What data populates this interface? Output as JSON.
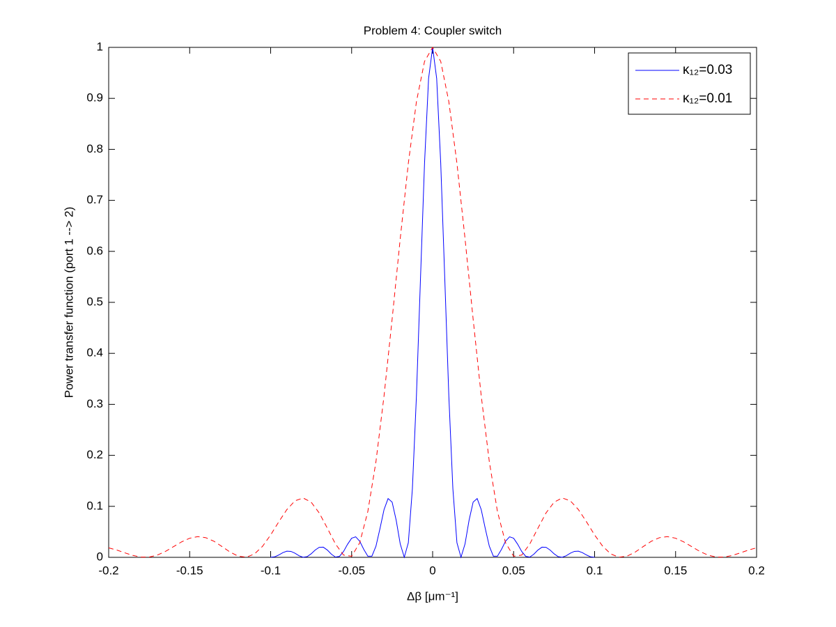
{
  "chart_data": {
    "type": "line",
    "title": "Problem 4: Coupler switch",
    "xlabel": "Δβ [μm⁻¹]",
    "ylabel": "Power transfer function (port 1 --> 2)",
    "xlim": [
      -0.2,
      0.2
    ],
    "ylim": [
      0,
      1
    ],
    "xticks": [
      -0.2,
      -0.15,
      -0.1,
      -0.05,
      0,
      0.05,
      0.1,
      0.15,
      0.2
    ],
    "yticks": [
      0,
      0.1,
      0.2,
      0.3,
      0.4,
      0.5,
      0.6,
      0.7,
      0.8,
      0.9,
      1
    ],
    "grid": false,
    "legend": "upper right",
    "series": [
      {
        "name": "κ₁₂=0.03",
        "color": "#0000ff",
        "linestyle": "solid",
        "x": [
          -0.1,
          -0.0975,
          -0.095,
          -0.0925,
          -0.09,
          -0.0875,
          -0.085,
          -0.0825,
          -0.08,
          -0.0775,
          -0.075,
          -0.0725,
          -0.07,
          -0.0675,
          -0.065,
          -0.0625,
          -0.06,
          -0.0575,
          -0.055,
          -0.0525,
          -0.05,
          -0.0475,
          -0.045,
          -0.0425,
          -0.04,
          -0.0375,
          -0.035,
          -0.0325,
          -0.03,
          -0.0275,
          -0.025,
          -0.0225,
          -0.02,
          -0.0175,
          -0.015,
          -0.0125,
          -0.01,
          -0.0075,
          -0.005,
          -0.0025,
          0,
          0.0025,
          0.005,
          0.0075,
          0.01,
          0.0125,
          0.015,
          0.0175,
          0.02,
          0.0225,
          0.025,
          0.0275,
          0.03,
          0.0325,
          0.035,
          0.0375,
          0.04,
          0.0425,
          0.045,
          0.0475,
          0.05,
          0.0525,
          0.055,
          0.0575,
          0.06,
          0.0625,
          0.065,
          0.0675,
          0.07,
          0.0725,
          0.075,
          0.0775,
          0.08,
          0.0825,
          0.085,
          0.0875,
          0.09,
          0.0925,
          0.095,
          0.0975,
          0.1
        ],
        "values": [
          0.0001,
          0.001,
          0.0046,
          0.0091,
          0.0121,
          0.0117,
          0.0081,
          0.0032,
          0.0002,
          0.0014,
          0.0069,
          0.0144,
          0.0197,
          0.0199,
          0.0143,
          0.0061,
          0.0005,
          0.0019,
          0.0115,
          0.0257,
          0.0375,
          0.0402,
          0.0315,
          0.0155,
          0.0022,
          0.0023,
          0.0217,
          0.0565,
          0.0936,
          0.1152,
          0.1082,
          0.0727,
          0.0263,
          0.0002,
          0.0286,
          0.1345,
          0.3166,
          0.5463,
          0.7728,
          0.939,
          1,
          0.939,
          0.7728,
          0.5463,
          0.3166,
          0.1345,
          0.0286,
          0.0002,
          0.0263,
          0.0727,
          0.1082,
          0.1152,
          0.0936,
          0.0565,
          0.0217,
          0.0023,
          0.0022,
          0.0155,
          0.0315,
          0.0402,
          0.0375,
          0.0257,
          0.0115,
          0.0019,
          0.0005,
          0.0061,
          0.0143,
          0.0199,
          0.0197,
          0.0144,
          0.0069,
          0.0014,
          0.0002,
          0.0032,
          0.0081,
          0.0117,
          0.0121,
          0.0091,
          0.0046,
          0.001,
          0.0001
        ]
      },
      {
        "name": "κ₁₂=0.01",
        "color": "#ff0000",
        "linestyle": "dashed",
        "x": [
          -0.2,
          -0.195,
          -0.19,
          -0.185,
          -0.18,
          -0.175,
          -0.17,
          -0.165,
          -0.16,
          -0.155,
          -0.15,
          -0.145,
          -0.14,
          -0.135,
          -0.13,
          -0.125,
          -0.12,
          -0.115,
          -0.11,
          -0.105,
          -0.1,
          -0.095,
          -0.09,
          -0.085,
          -0.08,
          -0.075,
          -0.07,
          -0.065,
          -0.06,
          -0.055,
          -0.05,
          -0.045,
          -0.04,
          -0.035,
          -0.03,
          -0.025,
          -0.02,
          -0.015,
          -0.01,
          -0.005,
          0,
          0.005,
          0.01,
          0.015,
          0.02,
          0.025,
          0.03,
          0.035,
          0.04,
          0.045,
          0.05,
          0.055,
          0.06,
          0.065,
          0.07,
          0.075,
          0.08,
          0.085,
          0.09,
          0.095,
          0.1,
          0.105,
          0.11,
          0.115,
          0.12,
          0.125,
          0.13,
          0.135,
          0.14,
          0.145,
          0.15,
          0.155,
          0.16,
          0.165,
          0.17,
          0.175,
          0.18,
          0.185,
          0.19,
          0.195,
          0.2
        ],
        "values": [
          0.0186,
          0.0143,
          0.0088,
          0.0037,
          0.0005,
          0.0005,
          0.0043,
          0.0115,
          0.0209,
          0.0303,
          0.0375,
          0.0406,
          0.0385,
          0.0315,
          0.0211,
          0.0102,
          0.0022,
          0.0002,
          0.0066,
          0.0217,
          0.0439,
          0.0696,
          0.0936,
          0.1108,
          0.1164,
          0.1082,
          0.087,
          0.0571,
          0.0263,
          0.0044,
          0.0021,
          0.0286,
          0.09,
          0.1875,
          0.3166,
          0.4673,
          0.625,
          0.7728,
          0.8935,
          0.9725,
          1,
          0.9725,
          0.8935,
          0.7728,
          0.625,
          0.4673,
          0.3166,
          0.1875,
          0.09,
          0.0286,
          0.0021,
          0.0044,
          0.0263,
          0.0571,
          0.087,
          0.1082,
          0.1164,
          0.1108,
          0.0936,
          0.0696,
          0.0439,
          0.0217,
          0.0066,
          0.0002,
          0.0022,
          0.0102,
          0.0211,
          0.0315,
          0.0385,
          0.0406,
          0.0375,
          0.0303,
          0.0209,
          0.0115,
          0.0043,
          0.0005,
          0.0005,
          0.0037,
          0.0088,
          0.0143,
          0.0186
        ]
      }
    ]
  }
}
